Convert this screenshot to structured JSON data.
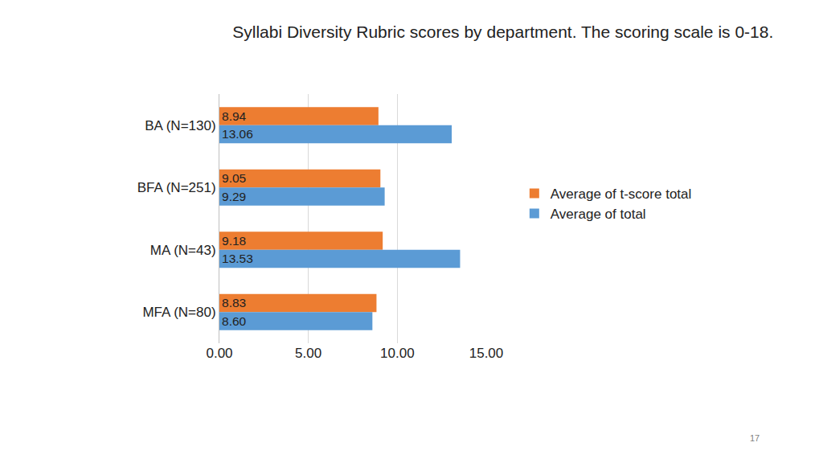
{
  "chart_data": {
    "type": "bar",
    "title": "Syllabi Diversity Rubric scores by department. The scoring scale is 0-18.",
    "orientation": "horizontal",
    "categories": [
      "BA (N=130)",
      "BFA (N=251)",
      "MA (N=43)",
      "MFA (N=80)"
    ],
    "series": [
      {
        "name": "Average of t-score total",
        "color": "#ed7d31",
        "values": [
          8.94,
          9.05,
          9.18,
          8.83
        ],
        "value_labels": [
          "8.94",
          "9.05",
          "9.18",
          "8.83"
        ]
      },
      {
        "name": "Average of total",
        "color": "#5b9bd5",
        "values": [
          13.06,
          9.29,
          13.53,
          8.6
        ],
        "value_labels": [
          "13.06",
          "9.29",
          "13.53",
          "8.60"
        ]
      }
    ],
    "xlim": [
      0,
      15
    ],
    "xticks": [
      {
        "value": 0,
        "label": "0.00"
      },
      {
        "value": 5,
        "label": "5.00"
      },
      {
        "value": 10,
        "label": "10.00"
      },
      {
        "value": 15,
        "label": "15.00"
      }
    ],
    "grid": true,
    "legend": "right",
    "data_labels": true,
    "annotations": [
      "17"
    ]
  }
}
